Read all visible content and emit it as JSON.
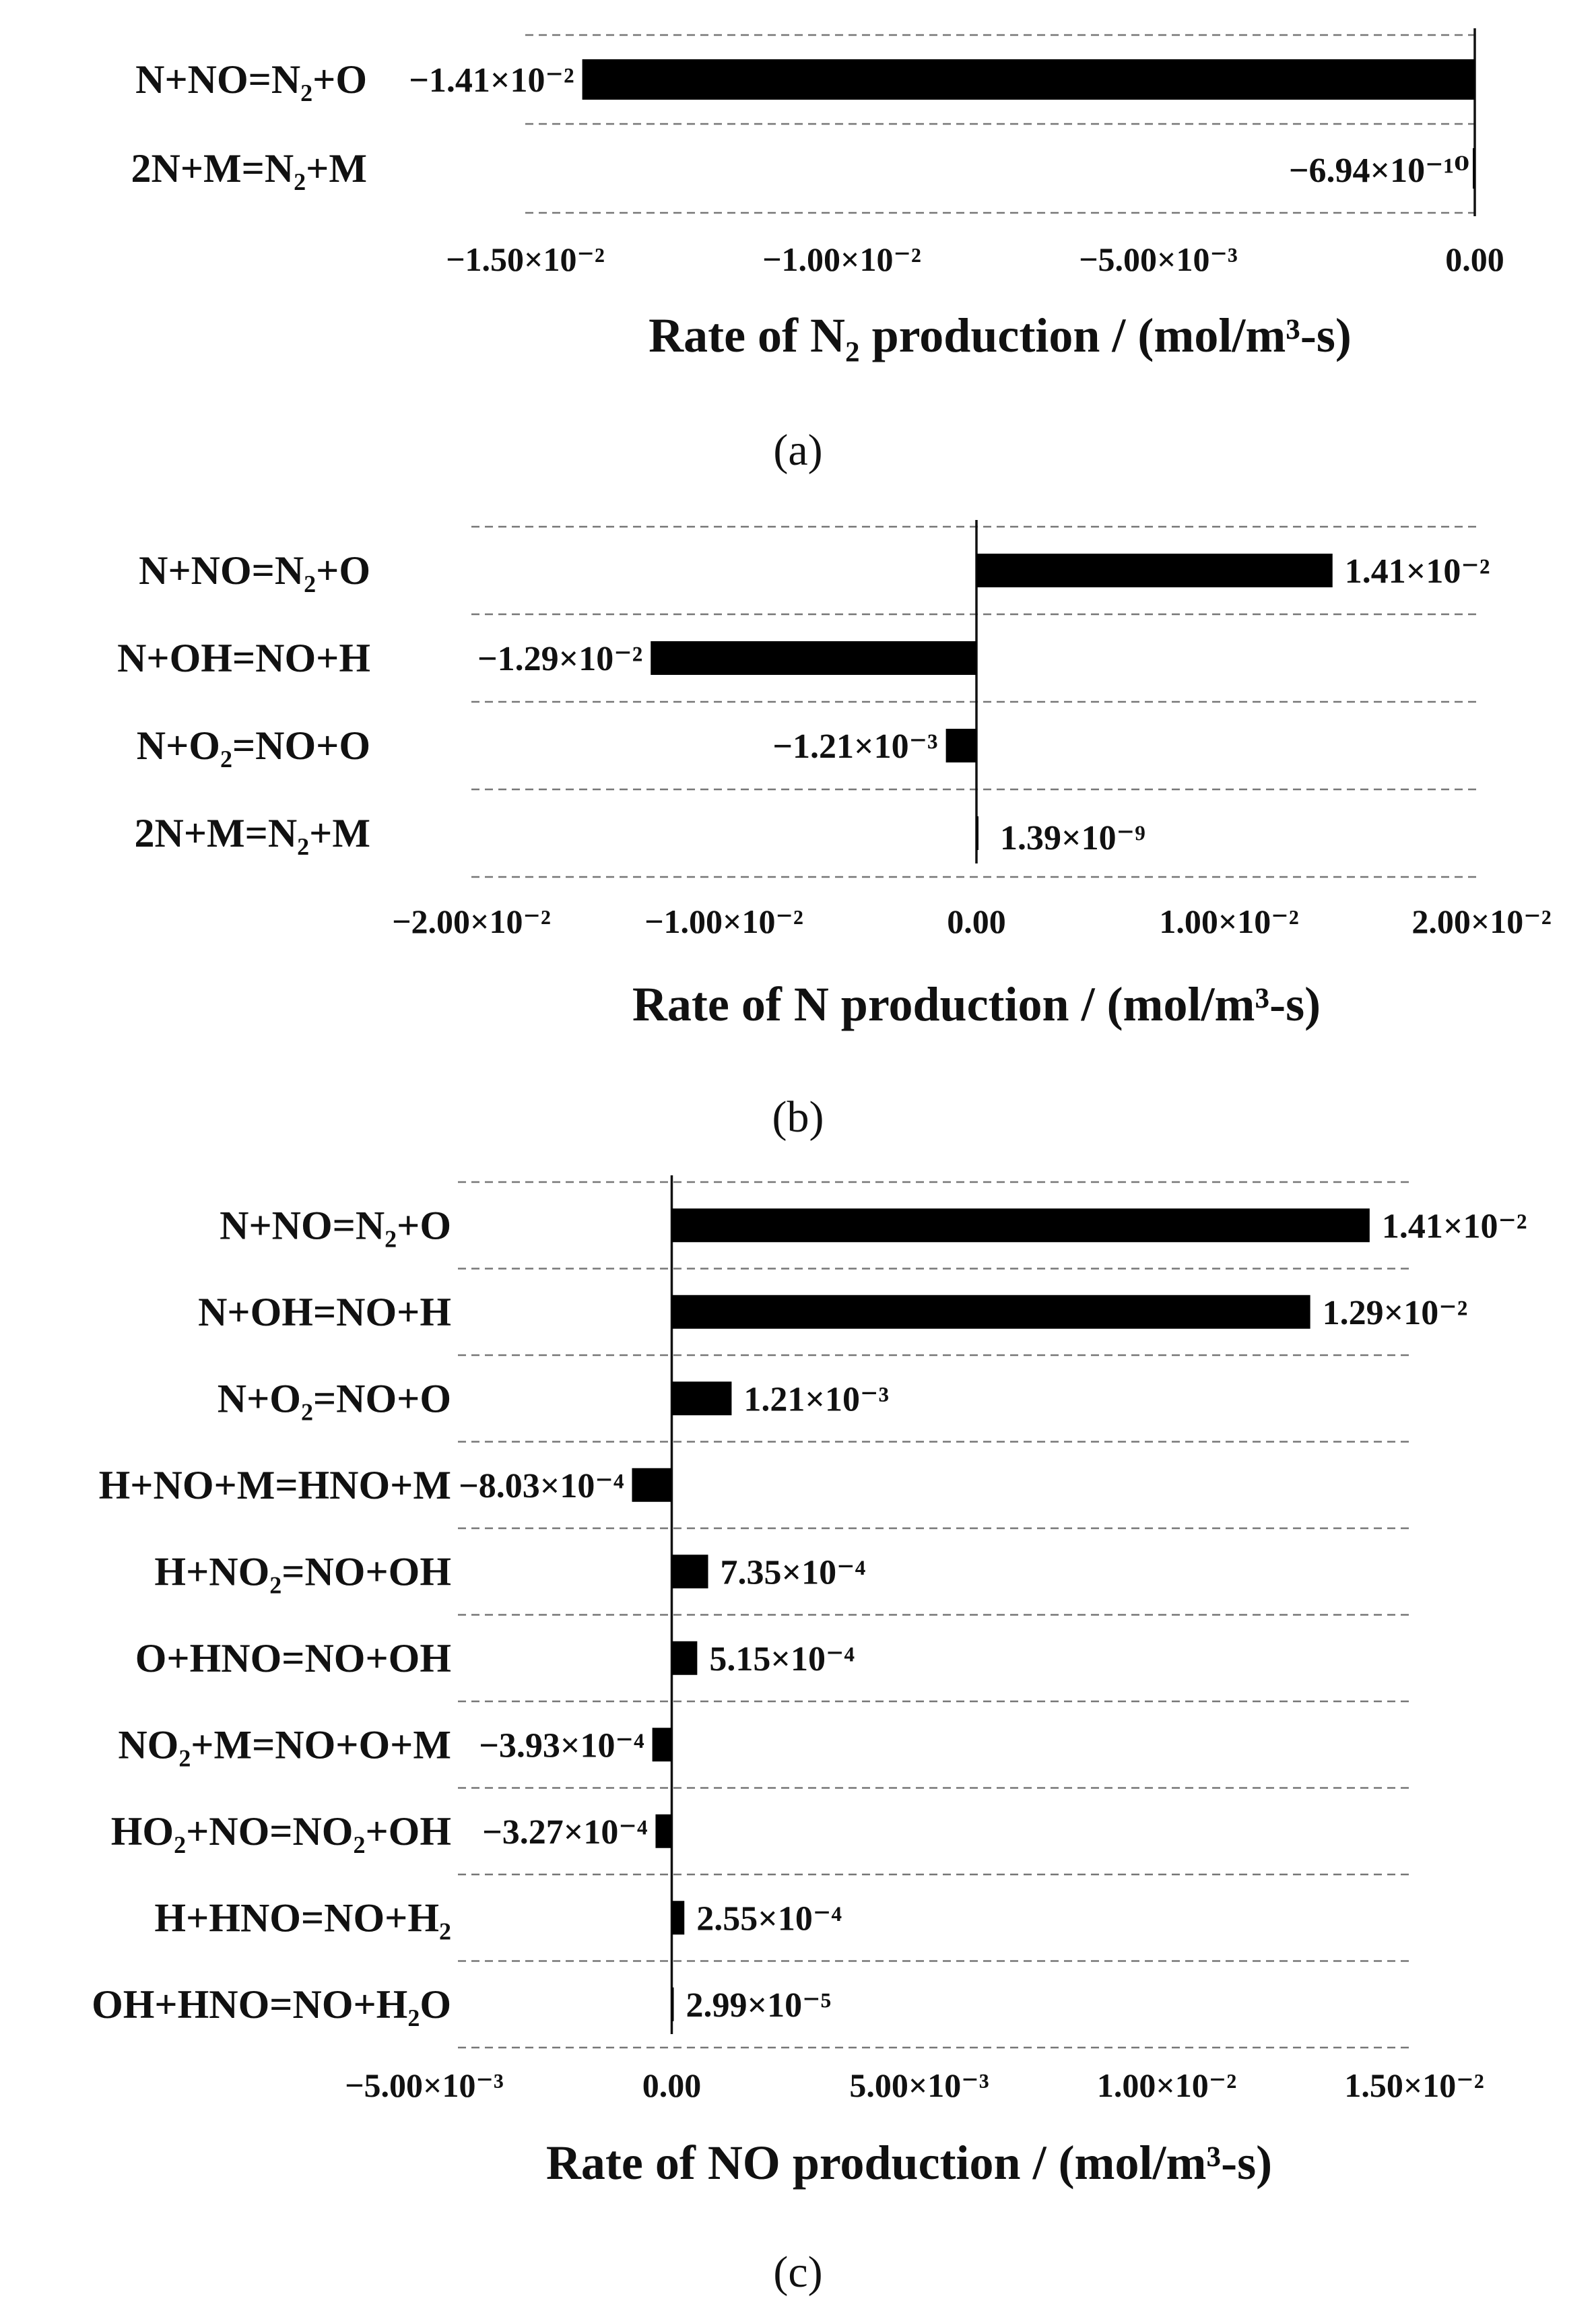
{
  "chart_data": [
    {
      "panel": "(a)",
      "type": "bar",
      "orientation": "horizontal",
      "categories": [
        "N+NO=N₂+O",
        "2N+M=N₂+M"
      ],
      "values": [
        -0.0141,
        -6.94e-10
      ],
      "value_labels": [
        "−1.41×10⁻²",
        "−6.94×10⁻¹⁰"
      ],
      "xlim": [
        -0.015,
        0.0
      ],
      "xticks": [
        -0.015,
        -0.01,
        -0.005,
        0.0
      ],
      "tick_labels": [
        "−1.50×10⁻²",
        "−1.00×10⁻²",
        "−5.00×10⁻³",
        "0.00"
      ],
      "xlabel": "Rate of N₂ production / (mol/m³-s)",
      "grid": true,
      "bar_color": "#000000"
    },
    {
      "panel": "(b)",
      "type": "bar",
      "orientation": "horizontal",
      "categories": [
        "N+NO=N₂+O",
        "N+OH=NO+H",
        "N+O₂=NO+O",
        "2N+M=N₂+M"
      ],
      "values": [
        0.0141,
        -0.0129,
        -0.00121,
        1.39e-09
      ],
      "value_labels": [
        "1.41×10⁻²",
        "−1.29×10⁻²",
        "−1.21×10⁻³",
        "1.39×10⁻⁹"
      ],
      "xlim": [
        -0.02,
        0.02
      ],
      "xticks": [
        -0.02,
        -0.01,
        0.0,
        0.01,
        0.02
      ],
      "tick_labels": [
        "−2.00×10⁻²",
        "−1.00×10⁻²",
        "0.00",
        "1.00×10⁻²",
        "2.00×10⁻²"
      ],
      "xlabel": "Rate of N production / (mol/m³-s)",
      "grid": true,
      "bar_color": "#000000"
    },
    {
      "panel": "(c)",
      "type": "bar",
      "orientation": "horizontal",
      "categories": [
        "N+NO=N₂+O",
        "N+OH=NO+H",
        "N+O₂=NO+O",
        "H+NO+M=HNO+M",
        "H+NO₂=NO+OH",
        "O+HNO=NO+OH",
        "NO₂+M=NO+O+M",
        "HO₂+NO=NO₂+OH",
        "H+HNO=NO+H₂",
        "OH+HNO=NO+H₂O"
      ],
      "values": [
        0.0141,
        0.0129,
        0.00121,
        -0.000803,
        0.000735,
        0.000515,
        -0.000393,
        -0.000327,
        0.000255,
        2.99e-05
      ],
      "value_labels": [
        "1.41×10⁻²",
        "1.29×10⁻²",
        "1.21×10⁻³",
        "−8.03×10⁻⁴",
        "7.35×10⁻⁴",
        "5.15×10⁻⁴",
        "−3.93×10⁻⁴",
        "−3.27×10⁻⁴",
        "2.55×10⁻⁴",
        "2.99×10⁻⁵"
      ],
      "xlim": [
        -0.005,
        0.015
      ],
      "xticks": [
        -0.005,
        0.0,
        0.005,
        0.01,
        0.015
      ],
      "tick_labels": [
        "−5.00×10⁻³",
        "0.00",
        "5.00×10⁻³",
        "1.00×10⁻²",
        "1.50×10⁻²"
      ],
      "xlabel": "Rate of NO production / (mol/m³-s)",
      "grid": true,
      "bar_color": "#000000"
    }
  ]
}
